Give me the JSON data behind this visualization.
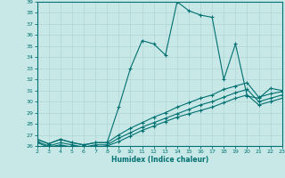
{
  "xlabel": "Humidex (Indice chaleur)",
  "bg_color": "#c8e8e8",
  "grid_color": "#b0d4d4",
  "line_color": "#007070",
  "xlim": [
    2,
    23
  ],
  "ylim": [
    26,
    39
  ],
  "xticks": [
    2,
    3,
    4,
    5,
    6,
    7,
    8,
    9,
    10,
    11,
    12,
    13,
    14,
    15,
    16,
    17,
    18,
    19,
    20,
    21,
    22,
    23
  ],
  "yticks": [
    26,
    27,
    28,
    29,
    30,
    31,
    32,
    33,
    34,
    35,
    36,
    37,
    38,
    39
  ],
  "series1_x": [
    2,
    3,
    4,
    5,
    6,
    7,
    8,
    9,
    10,
    11,
    12,
    13,
    14,
    15,
    16,
    17,
    18,
    19,
    20,
    21,
    22,
    23
  ],
  "series1_y": [
    26.6,
    26.2,
    26.6,
    26.3,
    26.1,
    26.3,
    26.3,
    29.5,
    33.0,
    35.5,
    35.2,
    34.2,
    39.0,
    38.2,
    37.8,
    37.6,
    32.0,
    35.2,
    30.5,
    30.3,
    31.2,
    31.0
  ],
  "series2_x": [
    2,
    3,
    4,
    5,
    6,
    7,
    8,
    9,
    10,
    11,
    12,
    13,
    14,
    15,
    16,
    17,
    18,
    19,
    20,
    21,
    22,
    23
  ],
  "series2_y": [
    26.6,
    26.2,
    26.6,
    26.3,
    26.1,
    26.3,
    26.3,
    27.0,
    27.6,
    28.1,
    28.6,
    29.0,
    29.5,
    29.9,
    30.3,
    30.6,
    31.1,
    31.4,
    31.7,
    30.4,
    30.7,
    30.9
  ],
  "series3_x": [
    2,
    3,
    4,
    5,
    6,
    7,
    8,
    9,
    10,
    11,
    12,
    13,
    14,
    15,
    16,
    17,
    18,
    19,
    20,
    21,
    22,
    23
  ],
  "series3_y": [
    26.4,
    26.0,
    26.3,
    26.1,
    25.9,
    26.1,
    26.1,
    26.7,
    27.2,
    27.7,
    28.1,
    28.5,
    28.9,
    29.3,
    29.7,
    30.0,
    30.4,
    30.8,
    31.1,
    30.0,
    30.3,
    30.6
  ],
  "series4_x": [
    2,
    3,
    4,
    5,
    6,
    7,
    8,
    9,
    10,
    11,
    12,
    13,
    14,
    15,
    16,
    17,
    18,
    19,
    20,
    21,
    22,
    23
  ],
  "series4_y": [
    26.3,
    25.9,
    26.1,
    25.9,
    25.8,
    25.9,
    26.0,
    26.4,
    26.9,
    27.4,
    27.8,
    28.2,
    28.6,
    28.9,
    29.2,
    29.5,
    29.9,
    30.3,
    30.6,
    29.7,
    30.0,
    30.3
  ]
}
